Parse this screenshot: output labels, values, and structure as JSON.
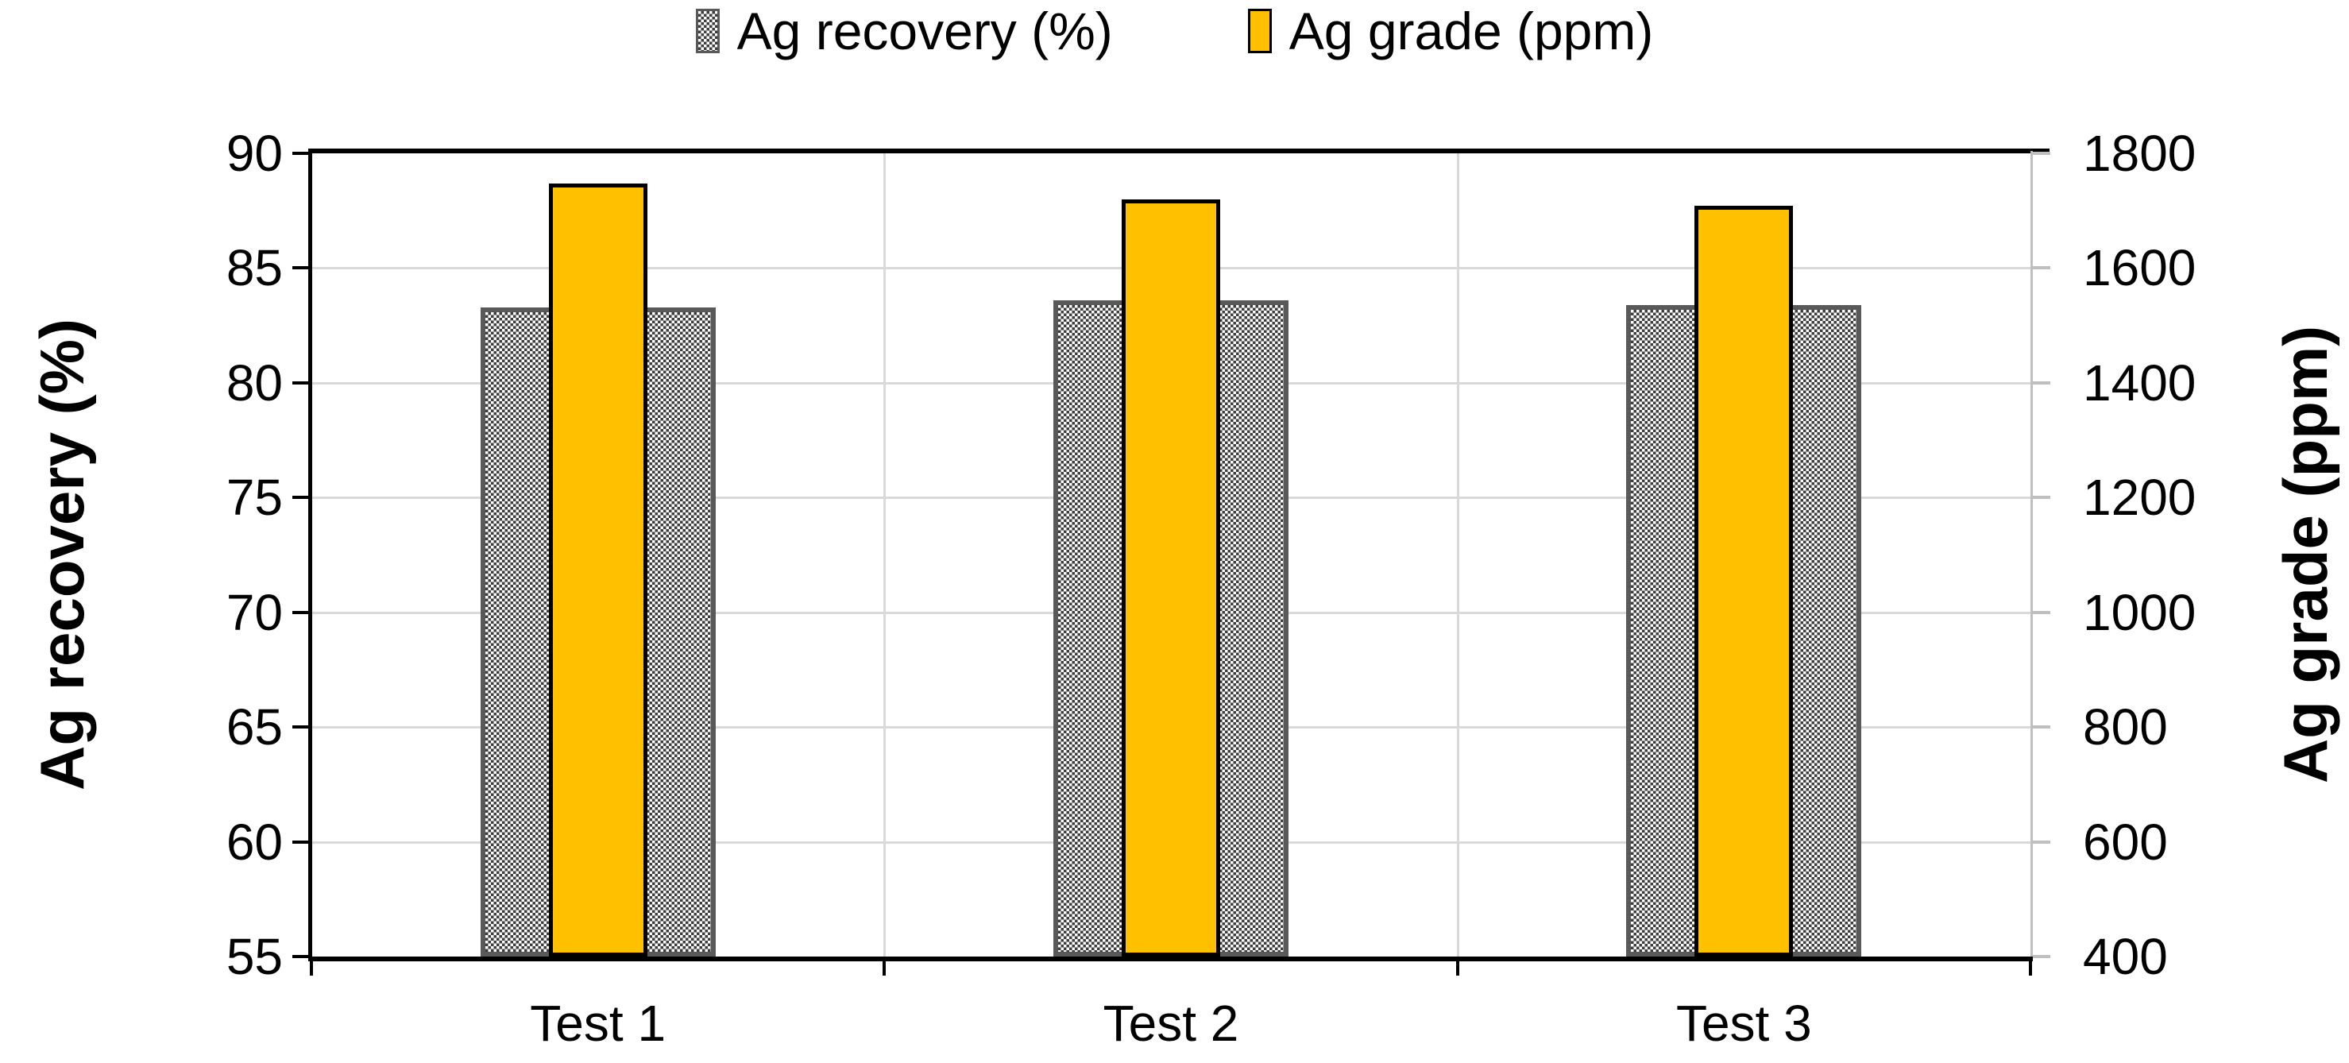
{
  "chart_data": {
    "type": "bar",
    "title": "",
    "categories": [
      "Test 1",
      "Test 2",
      "Test 3"
    ],
    "series": [
      {
        "name": "Ag recovery (%)",
        "axis": "left",
        "style": "gray-dot-pattern",
        "values": [
          83.3,
          83.6,
          83.4
        ]
      },
      {
        "name": "Ag grade (ppm)",
        "axis": "right",
        "style": "solid-yellow",
        "values": [
          1748,
          1720,
          1708
        ]
      }
    ],
    "left_axis": {
      "label": "Ag recovery (%)",
      "min": 55,
      "max": 90,
      "step": 5,
      "ticks": [
        90,
        85,
        80,
        75,
        70,
        65,
        60,
        55
      ]
    },
    "right_axis": {
      "label": "Ag grade (ppm)",
      "min": 400,
      "max": 1800,
      "step": 200,
      "ticks": [
        1800,
        1600,
        1400,
        1200,
        1000,
        800,
        600,
        400
      ]
    },
    "legend": {
      "position": "top",
      "entries": [
        "Ag recovery (%)",
        "Ag grade (ppm)"
      ]
    },
    "grid": "horizontal-and-category-boundaries",
    "colors": {
      "bar_yellow": "#FFC000",
      "bar_yellow_border": "#000000",
      "bar_gray_pattern_fg": "#3D3D3D",
      "bar_gray_pattern_bg": "#FFFFFF",
      "bar_gray_border": "#595959",
      "gridline": "#D9D9D9",
      "right_axis_line": "#BFBFBF",
      "primary_axis_line": "#000000",
      "text": "#000000"
    }
  }
}
